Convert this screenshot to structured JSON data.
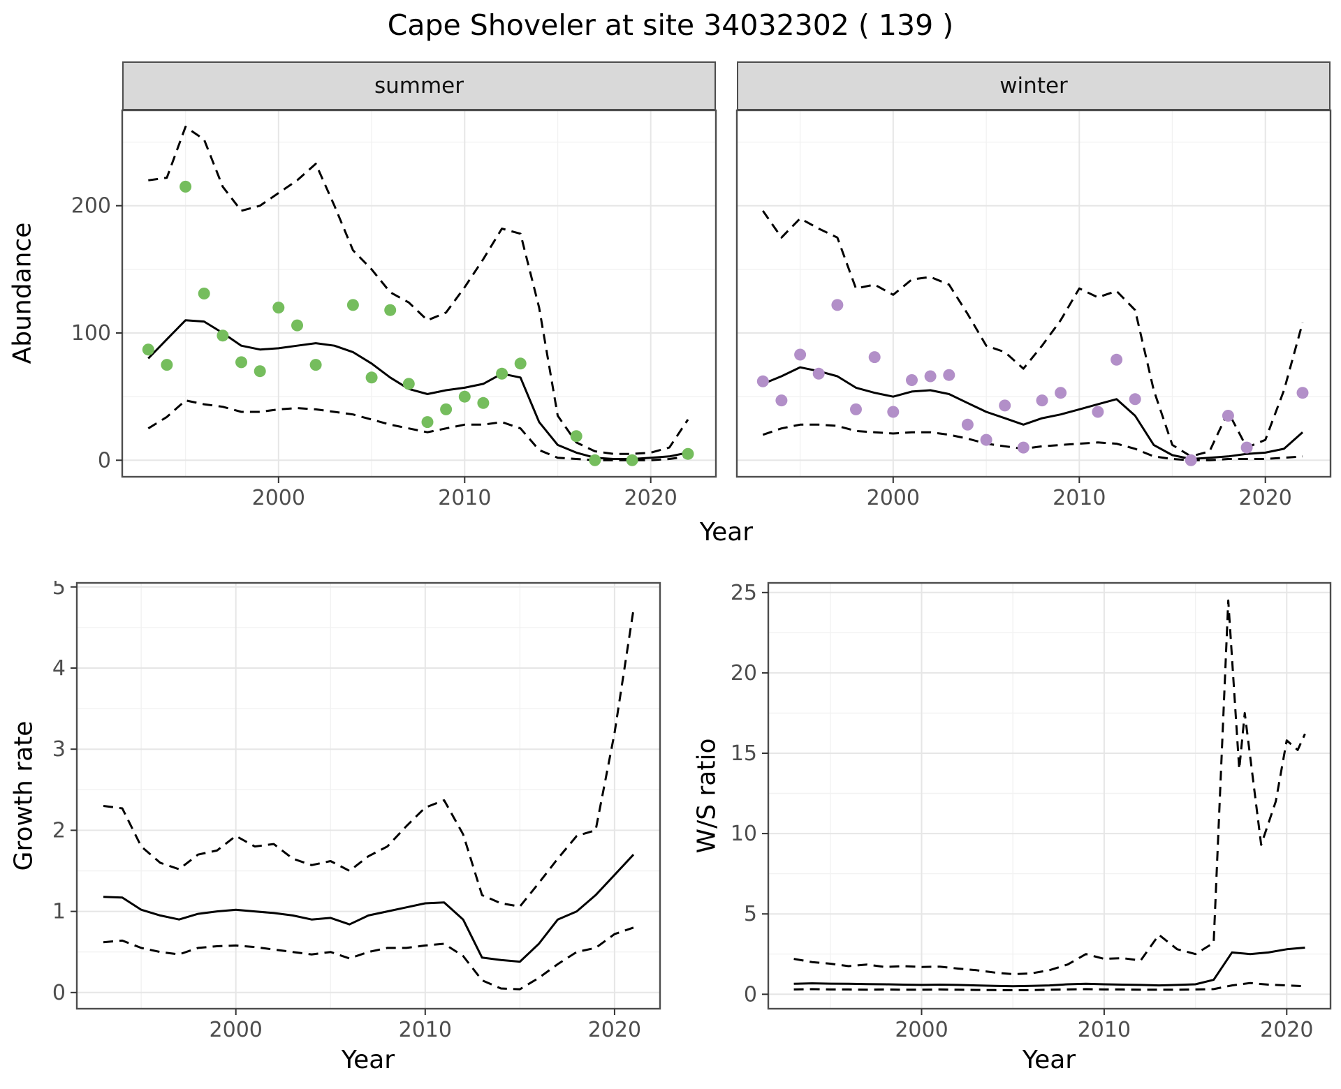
{
  "title": "Cape Shoveler at site 34032302 ( 139 )",
  "colors": {
    "summer_point": "#75bd5d",
    "winter_point": "#b28fc8",
    "line": "#000000",
    "strip_bg": "#d9d9d9",
    "panel_border": "#4d4d4d",
    "grid_major": "#e6e6e6",
    "grid_minor": "#f2f2f2"
  },
  "chart_data": [
    {
      "type": "scatter",
      "facet": "summer",
      "xlabel": "Year",
      "ylabel": "Abundance",
      "xlim": [
        1991.6,
        2023.5
      ],
      "ylim": [
        -13,
        275
      ],
      "xticks": [
        2000,
        2010,
        2020
      ],
      "yticks": [
        0,
        100,
        200
      ],
      "grid": true,
      "series": [
        {
          "name": "fit",
          "style": "solid",
          "x": [
            1993,
            1994,
            1995,
            1996,
            1997,
            1998,
            1999,
            2000,
            2001,
            2002,
            2003,
            2004,
            2005,
            2006,
            2007,
            2008,
            2009,
            2010,
            2011,
            2012,
            2013,
            2014,
            2015,
            2016,
            2017,
            2018,
            2019,
            2020,
            2021,
            2022
          ],
          "y": [
            80,
            95,
            110,
            109,
            100,
            90,
            87,
            88,
            90,
            92,
            90,
            85,
            76,
            65,
            56,
            52,
            55,
            57,
            60,
            68,
            65,
            30,
            12,
            6,
            2,
            1,
            1,
            2,
            3,
            6
          ]
        },
        {
          "name": "upper",
          "style": "dashed",
          "x": [
            1993,
            1994,
            1995,
            1996,
            1997,
            1998,
            1999,
            2000,
            2001,
            2002,
            2003,
            2004,
            2005,
            2006,
            2007,
            2008,
            2009,
            2010,
            2011,
            2012,
            2013,
            2014,
            2015,
            2016,
            2017,
            2018,
            2019,
            2020,
            2021,
            2022
          ],
          "y": [
            220,
            222,
            262,
            252,
            215,
            196,
            200,
            210,
            220,
            233,
            200,
            165,
            150,
            132,
            124,
            110,
            116,
            136,
            158,
            182,
            178,
            120,
            35,
            14,
            7,
            5,
            5,
            6,
            10,
            32
          ]
        },
        {
          "name": "lower",
          "style": "dashed",
          "x": [
            1993,
            1994,
            1995,
            1996,
            1997,
            1998,
            1999,
            2000,
            2001,
            2002,
            2003,
            2004,
            2005,
            2006,
            2007,
            2008,
            2009,
            2010,
            2011,
            2012,
            2013,
            2014,
            2015,
            2016,
            2017,
            2018,
            2019,
            2020,
            2021,
            2022
          ],
          "y": [
            25,
            34,
            47,
            44,
            42,
            38,
            38,
            40,
            41,
            40,
            38,
            36,
            32,
            28,
            25,
            22,
            25,
            28,
            28,
            30,
            25,
            8,
            2,
            1,
            0,
            0,
            0,
            0,
            1,
            3
          ]
        }
      ],
      "points": {
        "color": "#75bd5d",
        "x": [
          1993,
          1994,
          1995,
          1996,
          1997,
          1998,
          1999,
          2000,
          2001,
          2002,
          2004,
          2005,
          2006,
          2007,
          2008,
          2009,
          2010,
          2011,
          2012,
          2013,
          2016,
          2017,
          2019,
          2022
        ],
        "y": [
          87,
          75,
          215,
          131,
          98,
          77,
          70,
          120,
          106,
          75,
          122,
          65,
          118,
          60,
          30,
          40,
          50,
          45,
          68,
          76,
          19,
          0,
          0,
          5
        ]
      }
    },
    {
      "type": "scatter",
      "facet": "winter",
      "xlabel": "Year",
      "ylabel": "Abundance",
      "xlim": [
        1991.6,
        2023.5
      ],
      "ylim": [
        -13,
        275
      ],
      "xticks": [
        2000,
        2010,
        2020
      ],
      "yticks": [
        0,
        100,
        200
      ],
      "grid": true,
      "series": [
        {
          "name": "fit",
          "style": "solid",
          "x": [
            1993,
            1994,
            1995,
            1996,
            1997,
            1998,
            1999,
            2000,
            2001,
            2002,
            2003,
            2004,
            2005,
            2006,
            2007,
            2008,
            2009,
            2010,
            2011,
            2012,
            2013,
            2014,
            2015,
            2016,
            2017,
            2018,
            2019,
            2020,
            2021,
            2022
          ],
          "y": [
            60,
            66,
            73,
            70,
            66,
            57,
            53,
            50,
            54,
            55,
            52,
            45,
            38,
            33,
            28,
            33,
            36,
            40,
            44,
            48,
            35,
            12,
            4,
            1,
            2,
            3,
            5,
            6,
            9,
            22
          ]
        },
        {
          "name": "upper",
          "style": "dashed",
          "x": [
            1993,
            1994,
            1995,
            1996,
            1997,
            1998,
            1999,
            2000,
            2001,
            2002,
            2003,
            2004,
            2005,
            2006,
            2007,
            2008,
            2009,
            2010,
            2011,
            2012,
            2013,
            2014,
            2015,
            2016,
            2017,
            2018,
            2019,
            2020,
            2021,
            2022
          ],
          "y": [
            196,
            175,
            190,
            182,
            175,
            135,
            138,
            130,
            142,
            144,
            138,
            115,
            90,
            85,
            72,
            90,
            110,
            135,
            128,
            133,
            118,
            55,
            12,
            3,
            7,
            38,
            10,
            16,
            55,
            108
          ]
        },
        {
          "name": "lower",
          "style": "dashed",
          "x": [
            1993,
            1994,
            1995,
            1996,
            1997,
            1998,
            1999,
            2000,
            2001,
            2002,
            2003,
            2004,
            2005,
            2006,
            2007,
            2008,
            2009,
            2010,
            2011,
            2012,
            2013,
            2014,
            2015,
            2016,
            2017,
            2018,
            2019,
            2020,
            2021,
            2022
          ],
          "y": [
            20,
            25,
            28,
            28,
            27,
            23,
            22,
            21,
            22,
            22,
            20,
            17,
            13,
            11,
            9,
            11,
            12,
            13,
            14,
            13,
            9,
            3,
            1,
            0,
            0,
            1,
            1,
            1,
            2,
            3
          ]
        }
      ],
      "points": {
        "color": "#b28fc8",
        "x": [
          1993,
          1994,
          1995,
          1996,
          1997,
          1998,
          1999,
          2000,
          2001,
          2002,
          2003,
          2004,
          2005,
          2006,
          2007,
          2008,
          2009,
          2011,
          2012,
          2013,
          2016,
          2018,
          2019,
          2022
        ],
        "y": [
          62,
          47,
          83,
          68,
          122,
          40,
          81,
          38,
          63,
          66,
          67,
          28,
          16,
          43,
          10,
          47,
          53,
          38,
          79,
          48,
          0,
          35,
          10,
          53
        ]
      }
    },
    {
      "type": "line",
      "facet": null,
      "xlabel": "Year",
      "ylabel": "Growth rate",
      "xlim": [
        1991.6,
        2022.4
      ],
      "ylim": [
        -0.2,
        5.05
      ],
      "xticks": [
        2000,
        2010,
        2020
      ],
      "yticks": [
        0,
        1,
        2,
        3,
        4,
        5
      ],
      "grid": true,
      "series": [
        {
          "name": "fit",
          "style": "solid",
          "x": [
            1993,
            1994,
            1995,
            1996,
            1997,
            1998,
            1999,
            2000,
            2001,
            2002,
            2003,
            2004,
            2005,
            2006,
            2007,
            2008,
            2009,
            2010,
            2011,
            2012,
            2013,
            2014,
            2015,
            2016,
            2017,
            2018,
            2019,
            2020,
            2021
          ],
          "y": [
            1.18,
            1.17,
            1.02,
            0.95,
            0.9,
            0.97,
            1.0,
            1.02,
            1.0,
            0.98,
            0.95,
            0.9,
            0.92,
            0.84,
            0.95,
            1.0,
            1.05,
            1.1,
            1.11,
            0.9,
            0.43,
            0.4,
            0.38,
            0.6,
            0.9,
            1.0,
            1.2,
            1.45,
            1.7
          ]
        },
        {
          "name": "upper",
          "style": "dashed",
          "x": [
            1993,
            1994,
            1995,
            1996,
            1997,
            1998,
            1999,
            2000,
            2001,
            2002,
            2003,
            2004,
            2005,
            2006,
            2007,
            2008,
            2009,
            2010,
            2011,
            2012,
            2013,
            2014,
            2015,
            2016,
            2017,
            2018,
            2019,
            2020,
            2021
          ],
          "y": [
            2.3,
            2.27,
            1.8,
            1.6,
            1.52,
            1.7,
            1.75,
            1.93,
            1.8,
            1.83,
            1.65,
            1.57,
            1.62,
            1.5,
            1.68,
            1.8,
            2.05,
            2.28,
            2.37,
            1.95,
            1.2,
            1.1,
            1.06,
            1.35,
            1.65,
            1.93,
            2.0,
            3.2,
            4.72
          ]
        },
        {
          "name": "lower",
          "style": "dashed",
          "x": [
            1993,
            1994,
            1995,
            1996,
            1997,
            1998,
            1999,
            2000,
            2001,
            2002,
            2003,
            2004,
            2005,
            2006,
            2007,
            2008,
            2009,
            2010,
            2011,
            2012,
            2013,
            2014,
            2015,
            2016,
            2017,
            2018,
            2019,
            2020,
            2021
          ],
          "y": [
            0.62,
            0.64,
            0.55,
            0.5,
            0.47,
            0.55,
            0.57,
            0.58,
            0.56,
            0.53,
            0.5,
            0.47,
            0.5,
            0.42,
            0.5,
            0.55,
            0.55,
            0.58,
            0.6,
            0.45,
            0.15,
            0.05,
            0.04,
            0.18,
            0.35,
            0.5,
            0.55,
            0.72,
            0.8
          ]
        }
      ]
    },
    {
      "type": "line",
      "facet": null,
      "xlabel": "Year",
      "ylabel": "W/S ratio",
      "xlim": [
        1991.6,
        2022.4
      ],
      "ylim": [
        -0.9,
        25.6
      ],
      "xticks": [
        2000,
        2010,
        2020
      ],
      "yticks": [
        0,
        5,
        10,
        15,
        20,
        25
      ],
      "grid": true,
      "series": [
        {
          "name": "fit",
          "style": "solid",
          "x": [
            1993,
            1994,
            1995,
            1996,
            1997,
            1998,
            1999,
            2000,
            2001,
            2002,
            2003,
            2004,
            2005,
            2006,
            2007,
            2008,
            2009,
            2010,
            2011,
            2012,
            2013,
            2014,
            2015,
            2016,
            2017,
            2018,
            2019,
            2020,
            2021
          ],
          "y": [
            0.65,
            0.68,
            0.66,
            0.65,
            0.63,
            0.62,
            0.6,
            0.58,
            0.6,
            0.58,
            0.55,
            0.52,
            0.5,
            0.52,
            0.55,
            0.62,
            0.65,
            0.62,
            0.6,
            0.58,
            0.55,
            0.58,
            0.62,
            0.9,
            2.6,
            2.5,
            2.6,
            2.8,
            2.9
          ]
        },
        {
          "name": "upper",
          "style": "dashed",
          "x": [
            1993,
            1994,
            1995,
            1996,
            1997,
            1998,
            1999,
            2000,
            2001,
            2002,
            2003,
            2004,
            2005,
            2006,
            2007,
            2008,
            2009,
            2010,
            2011,
            2012,
            2013,
            2014,
            2015,
            2016,
            2016.8,
            2017.4,
            2017.7,
            2018.6,
            2019.4,
            2020,
            2020.6,
            2021
          ],
          "y": [
            2.2,
            2.0,
            1.9,
            1.75,
            1.85,
            1.7,
            1.75,
            1.7,
            1.72,
            1.6,
            1.5,
            1.35,
            1.25,
            1.3,
            1.5,
            1.85,
            2.5,
            2.2,
            2.25,
            2.1,
            3.7,
            2.8,
            2.5,
            3.2,
            24.5,
            14.0,
            17.5,
            9.3,
            12.0,
            15.8,
            15.2,
            16.2
          ]
        },
        {
          "name": "lower",
          "style": "dashed",
          "x": [
            1993,
            1994,
            1995,
            1996,
            1997,
            1998,
            1999,
            2000,
            2001,
            2002,
            2003,
            2004,
            2005,
            2006,
            2007,
            2008,
            2009,
            2010,
            2011,
            2012,
            2013,
            2014,
            2015,
            2016,
            2017,
            2018,
            2019,
            2020,
            2021
          ],
          "y": [
            0.3,
            0.32,
            0.3,
            0.3,
            0.28,
            0.3,
            0.28,
            0.28,
            0.3,
            0.28,
            0.27,
            0.26,
            0.25,
            0.26,
            0.28,
            0.3,
            0.32,
            0.3,
            0.3,
            0.28,
            0.28,
            0.28,
            0.3,
            0.32,
            0.55,
            0.7,
            0.6,
            0.55,
            0.5
          ]
        }
      ]
    }
  ]
}
